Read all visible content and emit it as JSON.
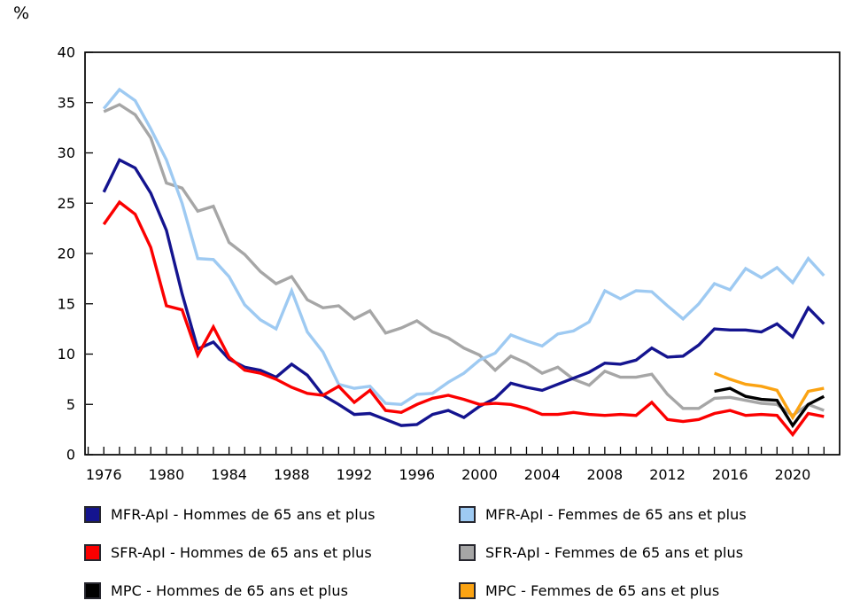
{
  "y_unit_label": "%",
  "chart_data": {
    "type": "line",
    "title": "",
    "xlabel": "",
    "ylabel": "%",
    "xlim": [
      1974.8,
      2023.0
    ],
    "ylim": [
      0,
      40
    ],
    "y_ticks": [
      0,
      5,
      10,
      15,
      20,
      25,
      30,
      35,
      40
    ],
    "x_tick_labels": [
      1976,
      1980,
      1984,
      1988,
      1992,
      1996,
      2000,
      2004,
      2008,
      2012,
      2016,
      2020
    ],
    "x_minor_tick_range": [
      1975,
      2022
    ],
    "grid": false,
    "legend_position": "bottom",
    "categories": [
      1976,
      1977,
      1978,
      1979,
      1980,
      1981,
      1982,
      1983,
      1984,
      1985,
      1986,
      1987,
      1988,
      1989,
      1990,
      1991,
      1992,
      1993,
      1994,
      1995,
      1996,
      1997,
      1998,
      1999,
      2000,
      2001,
      2002,
      2003,
      2004,
      2005,
      2006,
      2007,
      2008,
      2009,
      2010,
      2011,
      2012,
      2013,
      2014,
      2015,
      2016,
      2017,
      2018,
      2019,
      2020,
      2021,
      2022
    ],
    "series": [
      {
        "name": "SFR-ApI - Femmes de 65 ans et plus",
        "color": "#a6a6a6",
        "values": [
          34.1,
          34.8,
          33.8,
          31.5,
          27.0,
          26.5,
          24.2,
          24.7,
          21.1,
          19.9,
          18.2,
          17.0,
          17.7,
          15.4,
          14.6,
          14.8,
          13.5,
          14.3,
          12.1,
          12.6,
          13.3,
          12.2,
          11.6,
          10.6,
          9.9,
          8.4,
          9.8,
          9.1,
          8.1,
          8.7,
          7.5,
          6.9,
          8.3,
          7.7,
          7.7,
          8.0,
          6.0,
          4.6,
          4.6,
          5.6,
          5.7,
          5.4,
          5.1,
          5.0,
          3.9,
          5.0,
          4.4
        ]
      },
      {
        "name": "MFR-ApI - Femmes de 65 ans et plus",
        "color": "#9ecaf2",
        "values": [
          34.4,
          36.3,
          35.2,
          32.4,
          29.3,
          25.0,
          19.5,
          19.4,
          17.7,
          14.9,
          13.4,
          12.5,
          16.3,
          12.2,
          10.2,
          7.0,
          6.6,
          6.8,
          5.1,
          5.0,
          6.0,
          6.1,
          7.2,
          8.1,
          9.4,
          10.1,
          11.9,
          11.3,
          10.8,
          12.0,
          12.3,
          13.2,
          16.3,
          15.5,
          16.3,
          16.2,
          14.8,
          13.5,
          15.0,
          17.0,
          16.4,
          18.5,
          17.6,
          18.6,
          17.1,
          19.5,
          17.8
        ]
      },
      {
        "name": "MFR-ApI - Hommes de 65 ans et plus",
        "color": "#14148f",
        "values": [
          26.1,
          29.3,
          28.5,
          26.0,
          22.3,
          16.0,
          10.5,
          11.2,
          9.5,
          8.7,
          8.4,
          7.7,
          9.0,
          7.9,
          5.9,
          5.0,
          4.0,
          4.1,
          3.5,
          2.9,
          3.0,
          4.0,
          4.4,
          3.7,
          4.8,
          5.6,
          7.1,
          6.7,
          6.4,
          7.0,
          7.6,
          8.2,
          9.1,
          9.0,
          9.4,
          10.6,
          9.7,
          9.8,
          10.9,
          12.5,
          12.4,
          12.4,
          12.2,
          13.0,
          11.7,
          14.6,
          13.0
        ]
      },
      {
        "name": "SFR-ApI - Hommes de 65 ans et plus",
        "color": "#fb0000",
        "values": [
          22.9,
          25.1,
          23.9,
          20.6,
          14.8,
          14.4,
          9.9,
          12.7,
          9.7,
          8.4,
          8.1,
          7.5,
          6.7,
          6.1,
          5.9,
          6.8,
          5.2,
          6.4,
          4.4,
          4.2,
          5.0,
          5.6,
          5.9,
          5.5,
          5.0,
          5.1,
          5.0,
          4.6,
          4.0,
          4.0,
          4.2,
          4.0,
          3.9,
          4.0,
          3.9,
          5.2,
          3.5,
          3.3,
          3.5,
          4.1,
          4.4,
          3.9,
          4.0,
          3.9,
          2.0,
          4.1,
          3.8
        ]
      },
      {
        "name": "MPC - Hommes de 65 ans et plus",
        "color": "#000000",
        "values": [
          null,
          null,
          null,
          null,
          null,
          null,
          null,
          null,
          null,
          null,
          null,
          null,
          null,
          null,
          null,
          null,
          null,
          null,
          null,
          null,
          null,
          null,
          null,
          null,
          null,
          null,
          null,
          null,
          null,
          null,
          null,
          null,
          null,
          null,
          null,
          null,
          null,
          null,
          null,
          6.3,
          6.6,
          5.8,
          5.5,
          5.4,
          2.9,
          5.0,
          5.8
        ]
      },
      {
        "name": "MPC - Femmes de 65 ans et plus",
        "color": "#fba312",
        "values": [
          null,
          null,
          null,
          null,
          null,
          null,
          null,
          null,
          null,
          null,
          null,
          null,
          null,
          null,
          null,
          null,
          null,
          null,
          null,
          null,
          null,
          null,
          null,
          null,
          null,
          null,
          null,
          null,
          null,
          null,
          null,
          null,
          null,
          null,
          null,
          null,
          null,
          null,
          null,
          8.1,
          7.5,
          7.0,
          6.8,
          6.4,
          3.7,
          6.3,
          6.6
        ]
      }
    ]
  },
  "legend": {
    "items": [
      {
        "label": "MFR-ApI - Hommes de 65 ans et plus",
        "color": "#14148f"
      },
      {
        "label": "SFR-ApI - Hommes de 65 ans et plus",
        "color": "#fb0000"
      },
      {
        "label": "MPC - Hommes de 65 ans et plus",
        "color": "#000000"
      },
      {
        "label": "MFR-ApI - Femmes de 65 ans et plus",
        "color": "#9ecaf2"
      },
      {
        "label": "SFR-ApI - Femmes de 65 ans et plus",
        "color": "#a6a6a6"
      },
      {
        "label": "MPC - Femmes de 65 ans et plus",
        "color": "#fba312"
      }
    ]
  }
}
